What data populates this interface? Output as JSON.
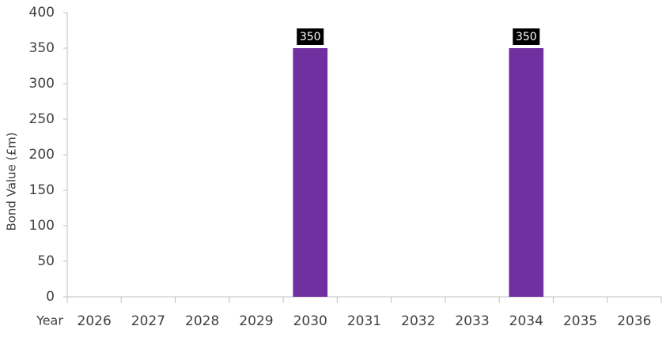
{
  "chart_data": {
    "type": "bar",
    "x_label": "Year",
    "y_label": "Bond Value (£m)",
    "categories": [
      "2026",
      "2027",
      "2028",
      "2029",
      "2030",
      "2031",
      "2032",
      "2033",
      "2034",
      "2035",
      "2036"
    ],
    "values": [
      0,
      0,
      0,
      0,
      350,
      0,
      0,
      0,
      350,
      0,
      0
    ],
    "color": "#7030a0",
    "ylim": [
      0,
      400
    ],
    "yticks": [
      0,
      50,
      100,
      150,
      200,
      250,
      300,
      350,
      400
    ],
    "grid": false
  }
}
